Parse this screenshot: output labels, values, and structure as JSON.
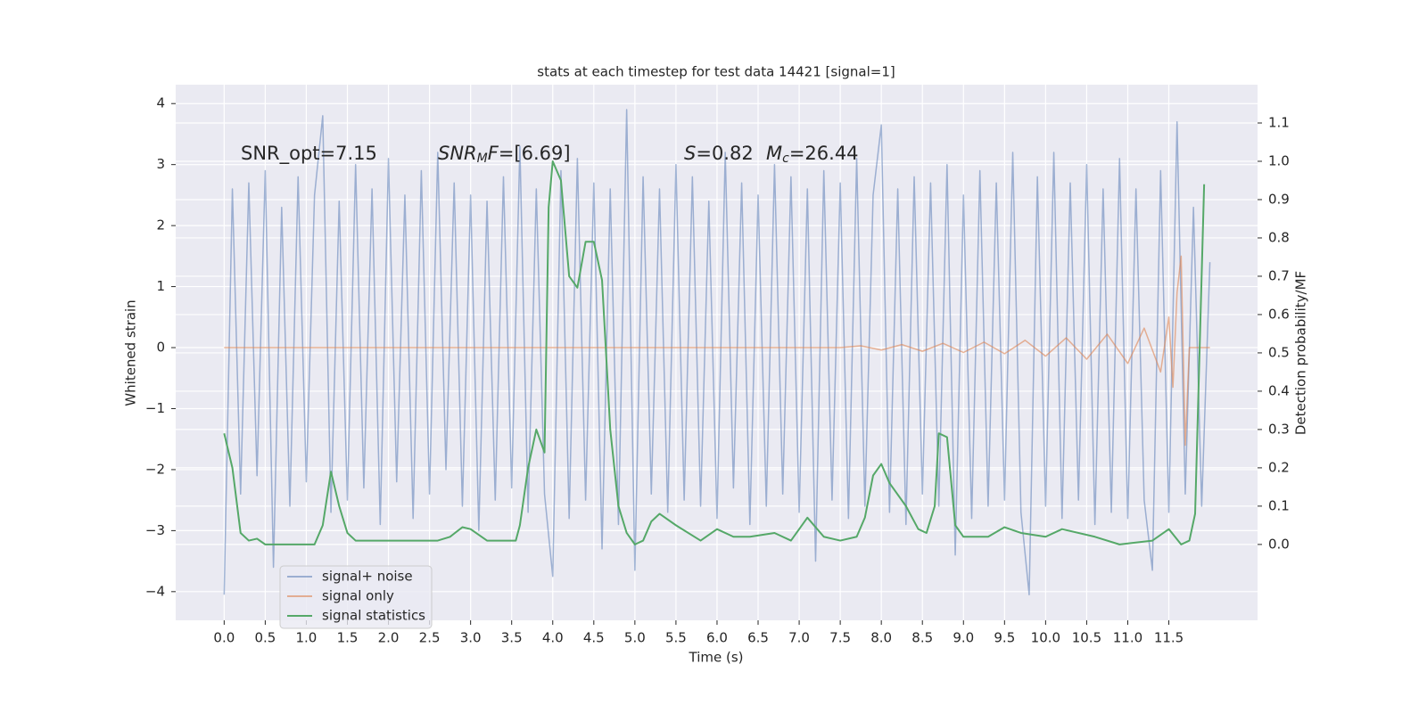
{
  "chart_data": {
    "type": "line",
    "title": "stats at each timestep for test data 14421 [signal=1]",
    "x_label": "Time (s)",
    "y_label": "Whitened strain",
    "y2_label": "Detection probability/MF",
    "xlim": [
      -0.59,
      12.58
    ],
    "ylim": [
      -4.47,
      4.31
    ],
    "y2lim": [
      -0.198,
      1.2
    ],
    "xticks": [
      {
        "value": 0,
        "label": "0.0"
      },
      {
        "value": 0.5,
        "label": "0.5"
      },
      {
        "value": 1,
        "label": "1.0"
      },
      {
        "value": 1.5,
        "label": "1.5"
      },
      {
        "value": 2,
        "label": "2.0"
      },
      {
        "value": 2.5,
        "label": "2.5"
      },
      {
        "value": 3,
        "label": "3.0"
      },
      {
        "value": 3.5,
        "label": "3.5"
      },
      {
        "value": 4,
        "label": "4.0"
      },
      {
        "value": 4.5,
        "label": "4.5"
      },
      {
        "value": 5,
        "label": "5.0"
      },
      {
        "value": 5.5,
        "label": "5.5"
      },
      {
        "value": 6,
        "label": "6.0"
      },
      {
        "value": 6.5,
        "label": "6.5"
      },
      {
        "value": 7,
        "label": "7.0"
      },
      {
        "value": 7.5,
        "label": "7.5"
      },
      {
        "value": 8,
        "label": "8.0"
      },
      {
        "value": 8.5,
        "label": "8.5"
      },
      {
        "value": 9,
        "label": "9.0"
      },
      {
        "value": 9.5,
        "label": "9.5"
      },
      {
        "value": 10,
        "label": "10.0"
      },
      {
        "value": 10.5,
        "label": "10.5"
      },
      {
        "value": 11,
        "label": "11.0"
      },
      {
        "value": 11.5,
        "label": "11.5"
      }
    ],
    "yticks": [
      {
        "value": -4,
        "label": "−4"
      },
      {
        "value": -3,
        "label": "−3"
      },
      {
        "value": -2,
        "label": "−2"
      },
      {
        "value": -1,
        "label": "−1"
      },
      0,
      1,
      2,
      3,
      4
    ],
    "y2ticks": [
      {
        "value": 0,
        "label": "0.0"
      },
      {
        "value": 0.1,
        "label": "0.1"
      },
      {
        "value": 0.2,
        "label": "0.2"
      },
      {
        "value": 0.3,
        "label": "0.3"
      },
      {
        "value": 0.4,
        "label": "0.4"
      },
      {
        "value": 0.5,
        "label": "0.5"
      },
      {
        "value": 0.6,
        "label": "0.6"
      },
      {
        "value": 0.7,
        "label": "0.7"
      },
      {
        "value": 0.8,
        "label": "0.8"
      },
      {
        "value": 0.9,
        "label": "0.9"
      },
      {
        "value": 1,
        "label": "1.0"
      },
      {
        "value": 1.1,
        "label": "1.1"
      }
    ],
    "grid": true,
    "legend": "lower left",
    "annotations": [
      [
        {
          "text": "SNR_opt=7.15"
        }
      ],
      [
        {
          "text": "SNR",
          "italic": true
        },
        {
          "text": "M",
          "italic": true,
          "sub": true
        },
        {
          "text": "F",
          "italic": true
        },
        {
          "text": "=[6.69]"
        }
      ],
      [
        {
          "text": "S",
          "italic": true
        },
        {
          "text": "=0.82"
        }
      ],
      [
        {
          "text": "M",
          "italic": true
        },
        {
          "text": "c",
          "italic": true,
          "sub": true
        },
        {
          "text": "=26.44"
        }
      ]
    ],
    "series": [
      {
        "name": "signal+ noise",
        "color": "#4c72b0",
        "opacity": 0.5,
        "axis": "y",
        "x": [
          0.0,
          0.1,
          0.2,
          0.3,
          0.4,
          0.5,
          0.6,
          0.7,
          0.8,
          0.9,
          1.0,
          1.1,
          1.2,
          1.3,
          1.4,
          1.5,
          1.6,
          1.7,
          1.8,
          1.9,
          2.0,
          2.1,
          2.2,
          2.3,
          2.4,
          2.5,
          2.6,
          2.7,
          2.8,
          2.9,
          3.0,
          3.1,
          3.2,
          3.3,
          3.4,
          3.5,
          3.6,
          3.7,
          3.8,
          3.9,
          4.0,
          4.1,
          4.2,
          4.3,
          4.4,
          4.5,
          4.6,
          4.7,
          4.8,
          4.9,
          5.0,
          5.1,
          5.2,
          5.3,
          5.4,
          5.5,
          5.6,
          5.7,
          5.8,
          5.9,
          6.0,
          6.1,
          6.2,
          6.3,
          6.4,
          6.5,
          6.6,
          6.7,
          6.8,
          6.9,
          7.0,
          7.1,
          7.2,
          7.3,
          7.4,
          7.5,
          7.6,
          7.7,
          7.8,
          7.9,
          8.0,
          8.1,
          8.2,
          8.3,
          8.4,
          8.5,
          8.6,
          8.7,
          8.8,
          8.9,
          9.0,
          9.1,
          9.2,
          9.3,
          9.4,
          9.5,
          9.6,
          9.7,
          9.8,
          9.9,
          10.0,
          10.1,
          10.2,
          10.3,
          10.4,
          10.5,
          10.6,
          10.7,
          10.8,
          10.9,
          11.0,
          11.1,
          11.2,
          11.3,
          11.4,
          11.5,
          11.6,
          11.7,
          11.8,
          11.9,
          12.0
        ],
        "values": [
          -4.05,
          2.6,
          -2.4,
          2.7,
          -2.1,
          2.9,
          -3.6,
          2.3,
          -2.6,
          2.8,
          -2.2,
          2.5,
          3.8,
          -2.7,
          2.4,
          -2.5,
          3.0,
          -2.3,
          2.6,
          -2.9,
          3.1,
          -2.2,
          2.5,
          -2.8,
          2.9,
          -2.4,
          3.2,
          -2.0,
          2.7,
          -2.6,
          2.5,
          -3.0,
          2.4,
          -2.5,
          2.8,
          -2.3,
          3.3,
          -2.7,
          2.6,
          -2.4,
          -3.75,
          2.9,
          -2.8,
          3.1,
          -2.5,
          2.7,
          -3.3,
          2.6,
          -2.9,
          3.9,
          -3.65,
          2.8,
          -2.4,
          2.6,
          -2.7,
          3.0,
          -2.5,
          2.8,
          -2.6,
          2.4,
          -2.8,
          3.2,
          -2.3,
          2.7,
          -2.9,
          2.5,
          -2.6,
          3.0,
          -2.4,
          2.8,
          -2.7,
          2.6,
          -3.5,
          2.9,
          -2.5,
          2.7,
          -2.8,
          3.1,
          -2.6,
          2.5,
          3.65,
          -2.7,
          2.6,
          -2.9,
          2.8,
          -2.4,
          2.7,
          -2.6,
          3.0,
          -3.4,
          2.5,
          -2.8,
          2.9,
          -2.6,
          2.7,
          -2.5,
          3.2,
          -2.7,
          -4.05,
          2.8,
          -2.6,
          3.2,
          -2.8,
          2.7,
          -2.5,
          3.0,
          -2.9,
          2.6,
          -2.7,
          3.1,
          -2.8,
          2.6,
          -2.5,
          -3.65,
          2.9,
          -2.7,
          3.7,
          -2.4,
          2.3,
          -2.6,
          1.4
        ]
      },
      {
        "name": "signal only",
        "color": "#dd8452",
        "opacity": 0.6,
        "axis": "y",
        "x": [
          0.0,
          7.5,
          7.75,
          8.0,
          8.25,
          8.5,
          8.75,
          9.0,
          9.25,
          9.5,
          9.75,
          10.0,
          10.25,
          10.5,
          10.75,
          11.0,
          11.2,
          11.4,
          11.5,
          11.55,
          11.6,
          11.65,
          11.7,
          11.75,
          12.0
        ],
        "values": [
          0,
          0,
          0.03,
          -0.04,
          0.05,
          -0.06,
          0.07,
          -0.08,
          0.09,
          -0.1,
          0.12,
          -0.14,
          0.16,
          -0.19,
          0.22,
          -0.26,
          0.32,
          -0.4,
          0.5,
          -0.65,
          0.9,
          1.5,
          -1.6,
          0,
          0
        ]
      },
      {
        "name": "signal statistics",
        "color": "#55a868",
        "opacity": 1,
        "axis": "y2",
        "x": [
          0.0,
          0.1,
          0.2,
          0.3,
          0.4,
          0.5,
          0.7,
          0.9,
          1.1,
          1.2,
          1.3,
          1.4,
          1.5,
          1.6,
          1.8,
          2.0,
          2.3,
          2.6,
          2.75,
          2.9,
          3.0,
          3.2,
          3.4,
          3.55,
          3.6,
          3.7,
          3.8,
          3.9,
          3.95,
          4.0,
          4.1,
          4.2,
          4.3,
          4.4,
          4.5,
          4.6,
          4.7,
          4.8,
          4.9,
          5.0,
          5.1,
          5.2,
          5.3,
          5.5,
          5.8,
          6.0,
          6.2,
          6.4,
          6.7,
          6.9,
          7.1,
          7.3,
          7.5,
          7.7,
          7.8,
          7.9,
          8.0,
          8.1,
          8.3,
          8.45,
          8.55,
          8.65,
          8.7,
          8.8,
          8.9,
          9.0,
          9.3,
          9.5,
          9.7,
          10.0,
          10.2,
          10.6,
          10.9,
          11.3,
          11.5,
          11.65,
          11.75,
          11.82,
          11.93
        ],
        "values": [
          0.29,
          0.2,
          0.03,
          0.01,
          0.015,
          0.0,
          0.0,
          0.0,
          0.0,
          0.05,
          0.19,
          0.1,
          0.03,
          0.01,
          0.01,
          0.01,
          0.01,
          0.01,
          0.02,
          0.045,
          0.04,
          0.01,
          0.01,
          0.01,
          0.05,
          0.2,
          0.3,
          0.24,
          0.88,
          1.0,
          0.95,
          0.7,
          0.67,
          0.79,
          0.79,
          0.69,
          0.3,
          0.1,
          0.03,
          0.0,
          0.01,
          0.06,
          0.08,
          0.05,
          0.01,
          0.04,
          0.02,
          0.02,
          0.03,
          0.01,
          0.07,
          0.02,
          0.01,
          0.02,
          0.07,
          0.18,
          0.21,
          0.16,
          0.1,
          0.04,
          0.03,
          0.1,
          0.29,
          0.28,
          0.05,
          0.02,
          0.02,
          0.045,
          0.03,
          0.02,
          0.04,
          0.02,
          0.0,
          0.01,
          0.04,
          0.0,
          0.01,
          0.08,
          0.94
        ]
      }
    ]
  }
}
